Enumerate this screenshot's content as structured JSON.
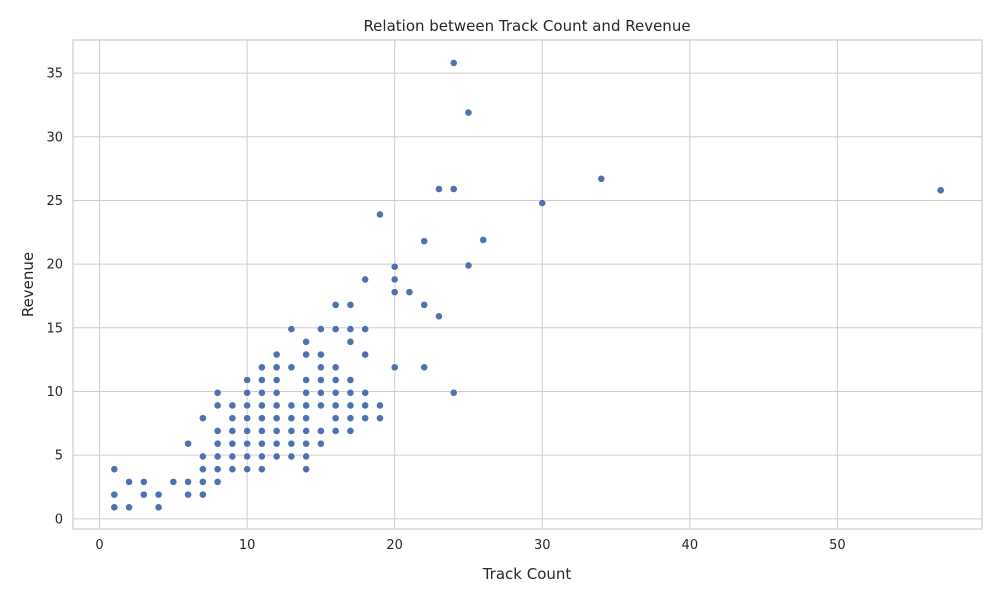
{
  "chart_data": {
    "type": "scatter",
    "title": "Relation between Track Count and Revenue",
    "xlabel": "Track Count",
    "ylabel": "Revenue",
    "xlim": [
      -1.8,
      59.8
    ],
    "ylim": [
      -0.8,
      37.6
    ],
    "xticks": [
      0,
      10,
      20,
      30,
      40,
      50
    ],
    "yticks": [
      0,
      5,
      10,
      15,
      20,
      25,
      30,
      35
    ],
    "grid": true,
    "point_color": "#4c72b0",
    "points": [
      [
        24,
        35.8
      ],
      [
        25,
        31.9
      ],
      [
        34,
        26.7
      ],
      [
        23,
        25.9
      ],
      [
        24,
        25.9
      ],
      [
        57,
        25.8
      ],
      [
        30,
        24.8
      ],
      [
        19,
        23.9
      ],
      [
        22,
        21.8
      ],
      [
        26,
        21.9
      ],
      [
        20,
        19.8
      ],
      [
        25,
        19.9
      ],
      [
        18,
        18.8
      ],
      [
        20,
        18.8
      ],
      [
        20,
        17.8
      ],
      [
        21,
        17.8
      ],
      [
        16,
        16.8
      ],
      [
        17,
        16.8
      ],
      [
        22,
        16.8
      ],
      [
        23,
        15.9
      ],
      [
        13,
        14.9
      ],
      [
        15,
        14.9
      ],
      [
        16,
        14.9
      ],
      [
        17,
        14.9
      ],
      [
        18,
        14.9
      ],
      [
        14,
        13.9
      ],
      [
        17,
        13.9
      ],
      [
        12,
        12.9
      ],
      [
        14,
        12.9
      ],
      [
        15,
        12.9
      ],
      [
        18,
        12.9
      ],
      [
        11,
        11.9
      ],
      [
        12,
        11.9
      ],
      [
        13,
        11.9
      ],
      [
        15,
        11.9
      ],
      [
        16,
        11.9
      ],
      [
        20,
        11.9
      ],
      [
        22,
        11.9
      ],
      [
        10,
        10.9
      ],
      [
        11,
        10.9
      ],
      [
        12,
        10.9
      ],
      [
        14,
        10.9
      ],
      [
        15,
        10.9
      ],
      [
        16,
        10.9
      ],
      [
        17,
        10.9
      ],
      [
        8,
        9.9
      ],
      [
        10,
        9.9
      ],
      [
        11,
        9.9
      ],
      [
        12,
        9.9
      ],
      [
        14,
        9.9
      ],
      [
        15,
        9.9
      ],
      [
        16,
        9.9
      ],
      [
        17,
        9.9
      ],
      [
        18,
        9.9
      ],
      [
        24,
        9.9
      ],
      [
        8,
        8.9
      ],
      [
        9,
        8.9
      ],
      [
        10,
        8.9
      ],
      [
        11,
        8.9
      ],
      [
        12,
        8.9
      ],
      [
        13,
        8.9
      ],
      [
        14,
        8.9
      ],
      [
        15,
        8.9
      ],
      [
        16,
        8.9
      ],
      [
        17,
        8.9
      ],
      [
        18,
        8.9
      ],
      [
        19,
        8.9
      ],
      [
        7,
        7.9
      ],
      [
        9,
        7.9
      ],
      [
        10,
        7.9
      ],
      [
        11,
        7.9
      ],
      [
        12,
        7.9
      ],
      [
        13,
        7.9
      ],
      [
        14,
        7.9
      ],
      [
        16,
        7.9
      ],
      [
        17,
        7.9
      ],
      [
        18,
        7.9
      ],
      [
        19,
        7.9
      ],
      [
        8,
        6.9
      ],
      [
        9,
        6.9
      ],
      [
        10,
        6.9
      ],
      [
        11,
        6.9
      ],
      [
        12,
        6.9
      ],
      [
        13,
        6.9
      ],
      [
        14,
        6.9
      ],
      [
        15,
        6.9
      ],
      [
        16,
        6.9
      ],
      [
        17,
        6.9
      ],
      [
        6,
        5.9
      ],
      [
        8,
        5.9
      ],
      [
        9,
        5.9
      ],
      [
        10,
        5.9
      ],
      [
        11,
        5.9
      ],
      [
        12,
        5.9
      ],
      [
        13,
        5.9
      ],
      [
        14,
        5.9
      ],
      [
        15,
        5.9
      ],
      [
        7,
        4.9
      ],
      [
        8,
        4.9
      ],
      [
        9,
        4.9
      ],
      [
        10,
        4.9
      ],
      [
        11,
        4.9
      ],
      [
        12,
        4.9
      ],
      [
        13,
        4.9
      ],
      [
        14,
        4.9
      ],
      [
        1,
        3.9
      ],
      [
        7,
        3.9
      ],
      [
        8,
        3.9
      ],
      [
        9,
        3.9
      ],
      [
        10,
        3.9
      ],
      [
        11,
        3.9
      ],
      [
        14,
        3.9
      ],
      [
        2,
        2.9
      ],
      [
        3,
        2.9
      ],
      [
        5,
        2.9
      ],
      [
        6,
        2.9
      ],
      [
        7,
        2.9
      ],
      [
        8,
        2.9
      ],
      [
        1,
        1.9
      ],
      [
        3,
        1.9
      ],
      [
        4,
        1.9
      ],
      [
        6,
        1.9
      ],
      [
        7,
        1.9
      ],
      [
        1,
        0.9
      ],
      [
        2,
        0.9
      ],
      [
        4,
        0.9
      ]
    ]
  }
}
